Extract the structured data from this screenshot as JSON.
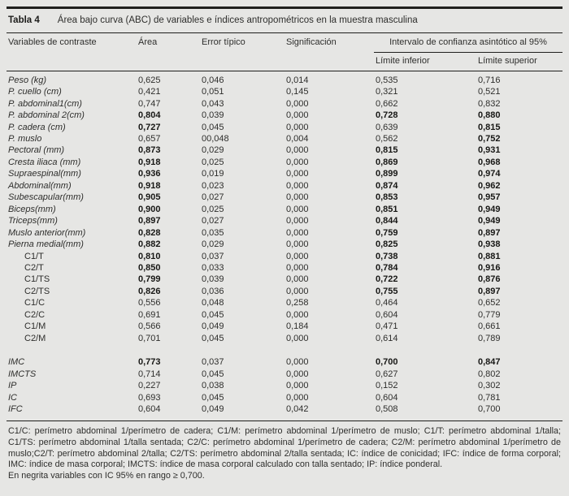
{
  "table": {
    "label": "Tabla 4",
    "title": "Área bajo curva (ABC) de variables e índices antropométricos en la muestra masculina",
    "columns": {
      "variable": "Variables de contraste",
      "area": "Área",
      "error": "Error típico",
      "sig": "Significación",
      "ci_group": "Intervalo de confianza asintótico al 95%",
      "ci_lower": "Límite inferior",
      "ci_upper": "Límite superior"
    },
    "rows": [
      {
        "label": "Peso (kg)",
        "italic": true,
        "indent": false,
        "area": "0,625",
        "error": "0,046",
        "sig": "0,014",
        "low": "0,535",
        "high": "0,716",
        "bold": []
      },
      {
        "label": "P. cuello (cm)",
        "italic": true,
        "indent": false,
        "area": "0,421",
        "error": "0,051",
        "sig": "0,145",
        "low": "0,321",
        "high": "0,521",
        "bold": []
      },
      {
        "label": "P. abdominal1(cm)",
        "italic": true,
        "indent": false,
        "area": "0,747",
        "error": "0,043",
        "sig": "0,000",
        "low": "0,662",
        "high": "0,832",
        "bold": []
      },
      {
        "label": "P. abdominal 2(cm)",
        "italic": true,
        "indent": false,
        "area": "0,804",
        "error": "0,039",
        "sig": "0,000",
        "low": "0,728",
        "high": "0,880",
        "bold": [
          "area",
          "low",
          "high"
        ]
      },
      {
        "label": "P. cadera (cm)",
        "italic": true,
        "indent": false,
        "area": "0,727",
        "error": "0,045",
        "sig": "0,000",
        "low": "0,639",
        "high": "0,815",
        "bold": [
          "area",
          "high"
        ]
      },
      {
        "label": "P. muslo",
        "italic": true,
        "indent": false,
        "area": "0,657",
        "error": "00,048",
        "sig": "0,004",
        "low": "0,562",
        "high": "0,752",
        "bold": [
          "high"
        ]
      },
      {
        "label": "Pectoral (mm)",
        "italic": true,
        "indent": false,
        "area": "0,873",
        "error": "0,029",
        "sig": "0,000",
        "low": "0,815",
        "high": "0,931",
        "bold": [
          "area",
          "low",
          "high"
        ]
      },
      {
        "label": "Cresta iliaca (mm)",
        "italic": true,
        "indent": false,
        "area": "0,918",
        "error": "0,025",
        "sig": "0,000",
        "low": "0,869",
        "high": "0,968",
        "bold": [
          "area",
          "low",
          "high"
        ]
      },
      {
        "label": "Supraespinal(mm)",
        "italic": true,
        "indent": false,
        "area": "0,936",
        "error": "0,019",
        "sig": "0,000",
        "low": "0,899",
        "high": "0,974",
        "bold": [
          "area",
          "low",
          "high"
        ]
      },
      {
        "label": "Abdominal(mm)",
        "italic": true,
        "indent": false,
        "area": "0,918",
        "error": "0,023",
        "sig": "0,000",
        "low": "0,874",
        "high": "0,962",
        "bold": [
          "area",
          "low",
          "high"
        ]
      },
      {
        "label": "Subescapular(mm)",
        "italic": true,
        "indent": false,
        "area": "0,905",
        "error": "0,027",
        "sig": "0,000",
        "low": "0,853",
        "high": "0,957",
        "bold": [
          "area",
          "low",
          "high"
        ]
      },
      {
        "label": "Biceps(mm)",
        "italic": true,
        "indent": false,
        "area": "0,900",
        "error": "0,025",
        "sig": "0,000",
        "low": "0,851",
        "high": "0,949",
        "bold": [
          "area",
          "low",
          "high"
        ]
      },
      {
        "label": "Triceps(mm)",
        "italic": true,
        "indent": false,
        "area": "0,897",
        "error": "0,027",
        "sig": "0,000",
        "low": "0,844",
        "high": "0,949",
        "bold": [
          "area",
          "low",
          "high"
        ]
      },
      {
        "label": "Muslo anterior(mm)",
        "italic": true,
        "indent": false,
        "area": "0,828",
        "error": "0,035",
        "sig": "0,000",
        "low": "0,759",
        "high": "0,897",
        "bold": [
          "area",
          "low",
          "high"
        ]
      },
      {
        "label": "Pierna medial(mm)",
        "italic": true,
        "indent": false,
        "area": "0,882",
        "error": "0,029",
        "sig": "0,000",
        "low": "0,825",
        "high": "0,938",
        "bold": [
          "area",
          "low",
          "high"
        ]
      },
      {
        "label": "C1/T",
        "italic": false,
        "indent": true,
        "area": "0,810",
        "error": "0,037",
        "sig": "0,000",
        "low": "0,738",
        "high": "0,881",
        "bold": [
          "area",
          "low",
          "high"
        ]
      },
      {
        "label": "C2/T",
        "italic": false,
        "indent": true,
        "area": "0,850",
        "error": "0,033",
        "sig": "0,000",
        "low": "0,784",
        "high": "0,916",
        "bold": [
          "area",
          "low",
          "high"
        ]
      },
      {
        "label": "C1/TS",
        "italic": false,
        "indent": true,
        "area": "0,799",
        "error": "0,039",
        "sig": "0,000",
        "low": "0,722",
        "high": "0,876",
        "bold": [
          "area",
          "low",
          "high"
        ]
      },
      {
        "label": "C2/TS",
        "italic": false,
        "indent": true,
        "area": "0,826",
        "error": "0,036",
        "sig": "0,000",
        "low": "0,755",
        "high": "0,897",
        "bold": [
          "area",
          "low",
          "high"
        ]
      },
      {
        "label": "C1/C",
        "italic": false,
        "indent": true,
        "area": "0,556",
        "error": "0,048",
        "sig": "0,258",
        "low": "0,464",
        "high": "0,652",
        "bold": []
      },
      {
        "label": "C2/C",
        "italic": false,
        "indent": true,
        "area": "0,691",
        "error": "0,045",
        "sig": "0,000",
        "low": "0,604",
        "high": "0,779",
        "bold": []
      },
      {
        "label": "C1/M",
        "italic": false,
        "indent": true,
        "area": "0,566",
        "error": "0,049",
        "sig": "0,184",
        "low": "0,471",
        "high": "0,661",
        "bold": []
      },
      {
        "label": "C2/M",
        "italic": false,
        "indent": true,
        "area": "0,701",
        "error": "0,045",
        "sig": "0,000",
        "low": "0,614",
        "high": "0,789",
        "bold": []
      },
      {
        "label": "IMC",
        "italic": true,
        "indent": false,
        "gap_before": true,
        "area": "0,773",
        "error": "0,037",
        "sig": "0,000",
        "low": "0,700",
        "high": "0,847",
        "bold": [
          "area",
          "low",
          "high"
        ]
      },
      {
        "label": "IMCTS",
        "italic": true,
        "indent": false,
        "area": "0,714",
        "error": "0,045",
        "sig": "0,000",
        "low": "0,627",
        "high": "0,802",
        "bold": []
      },
      {
        "label": "IP",
        "italic": true,
        "indent": false,
        "area": "0,227",
        "error": "0,038",
        "sig": "0,000",
        "low": "0,152",
        "high": "0,302",
        "bold": []
      },
      {
        "label": "IC",
        "italic": true,
        "indent": false,
        "area": "0,693",
        "error": "0,045",
        "sig": "0,000",
        "low": "0,604",
        "high": "0,781",
        "bold": []
      },
      {
        "label": "IFC",
        "italic": true,
        "indent": false,
        "area": "0,604",
        "error": "0,049",
        "sig": "0,042",
        "low": "0,508",
        "high": "0,700",
        "bold": []
      }
    ],
    "footnotes": {
      "abbreviations": "C1/C: perímetro abdominal 1/perímetro de cadera; C1/M: perímetro abdominal 1/perímetro de muslo; C1/T: perímetro abdominal 1/talla; C1/TS: perímetro abdominal 1/talla sentada; C2/C: perímetro abdominal 1/perímetro de cadera; C2/M: perímetro abdominal 1/perímetro de muslo;C2/T: perímetro abdominal 2/talla; C2/TS: perímetro abdominal 2/talla sentada; IC: índice de conicidad; IFC: índice de forma corporal; IMC: índice de masa corporal; IMCTS: índice de masa corporal calculado con talla sentado; IP: índice ponderal.",
      "bold_note": "En negrita variables con IC 95% en rango ≥ 0,700."
    }
  }
}
